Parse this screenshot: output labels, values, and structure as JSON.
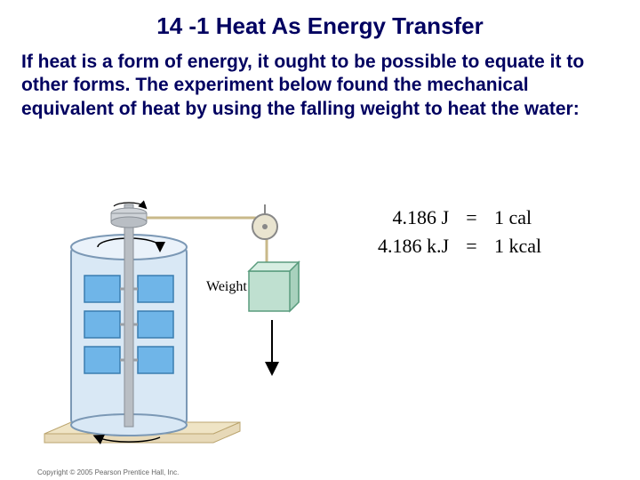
{
  "title": "14 -1 Heat As Energy Transfer",
  "body_text": "If heat is a form of energy, it ought to be possible to equate it to other forms. The experiment below found the mechanical equivalent of heat by using the falling weight to heat the water:",
  "equations": [
    {
      "lhs": "4.186 J",
      "eq": "=",
      "rhs": "1 cal"
    },
    {
      "lhs": "4.186 k.J",
      "eq": "=",
      "rhs": "1 kcal"
    }
  ],
  "diagram": {
    "weight_label": "Weight",
    "colors": {
      "cylinder_fill": "#d9e8f5",
      "cylinder_stroke": "#7b98b5",
      "paddle_fill": "#6fb5e8",
      "paddle_stroke": "#3a7db0",
      "shaft": "#9aa0a6",
      "rope": "#c9b98a",
      "pulley_fill": "#e9e4d0",
      "pulley_stroke": "#888",
      "weight_fill": "#bfe0d0",
      "weight_stroke": "#5a9c7e",
      "base_fill": "#e7d9b8",
      "base_stroke": "#bba56f",
      "arrow": "#000"
    },
    "paddle_rows": [
      90,
      130,
      170
    ],
    "copyright": "Copyright © 2005 Pearson Prentice Hall, Inc."
  },
  "text_color": "#000060"
}
